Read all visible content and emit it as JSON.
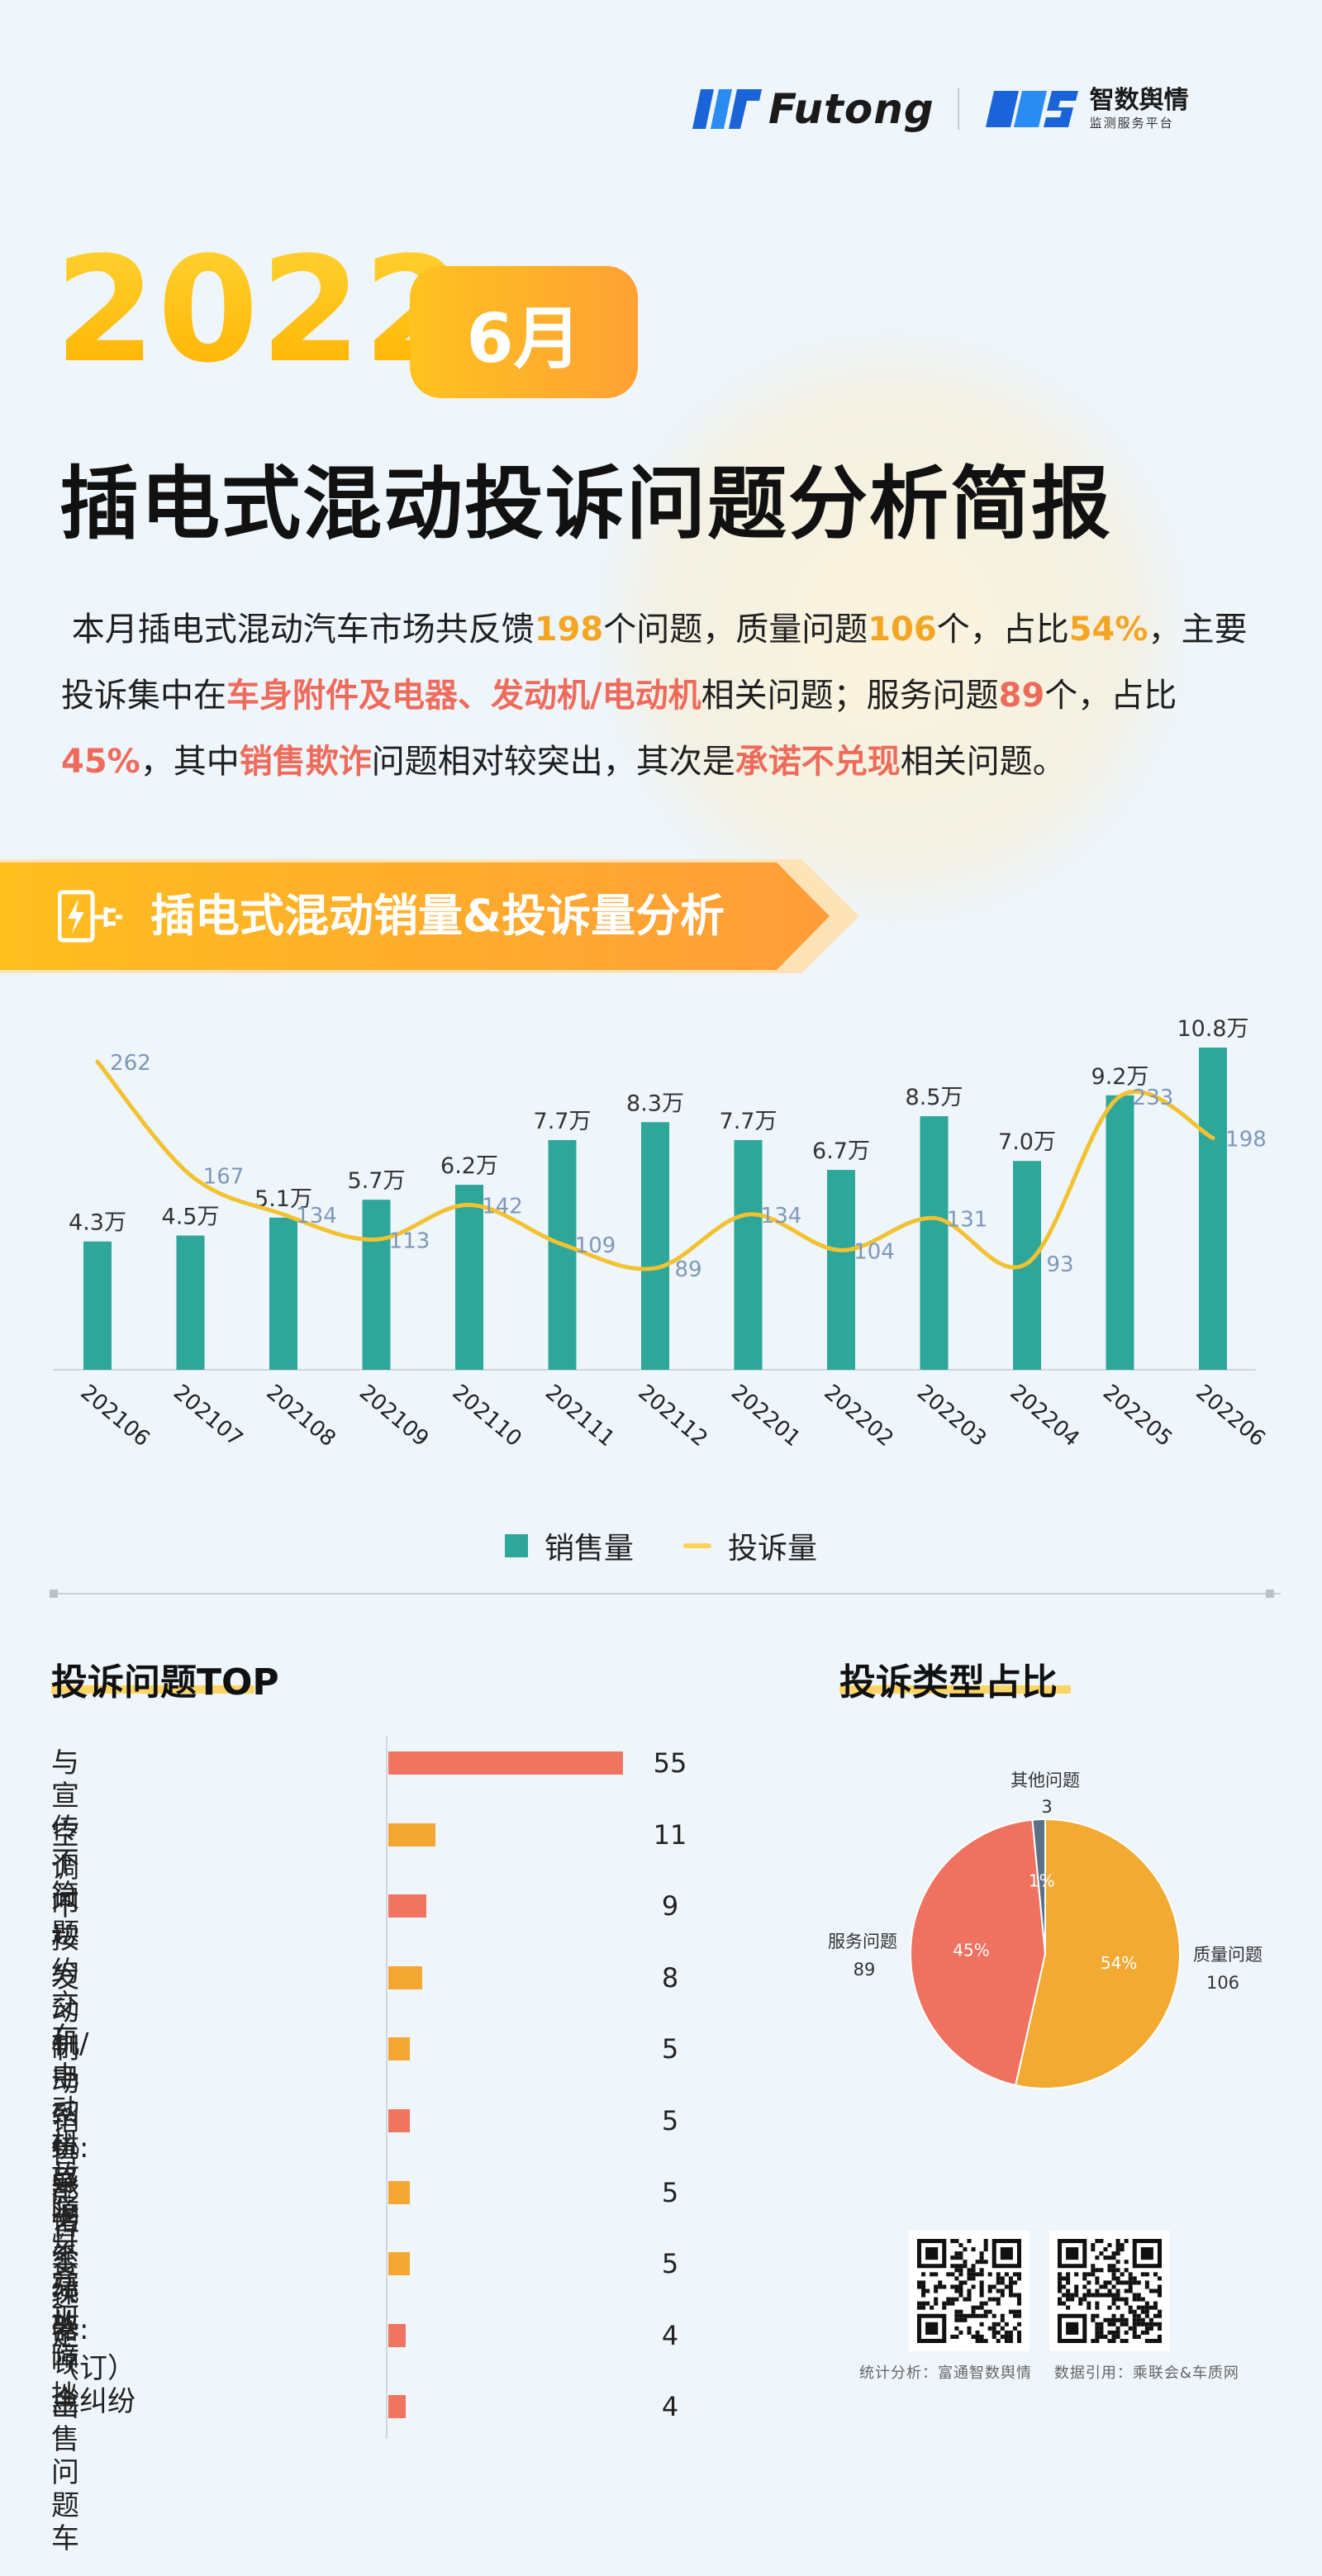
{
  "header": {
    "futong_brand": "Futong",
    "zhishu_name": "智数舆情",
    "zhishu_sub": "监测服务平台"
  },
  "hero": {
    "year": "2022",
    "month": "6月",
    "title": "插电式混动投诉问题分析简报"
  },
  "intro": {
    "p1": "本月插电式混动汽车市场共反馈",
    "total": "198",
    "p2": "个问题，质量问题",
    "quality": "106",
    "p3": "个，占比",
    "quality_pct": "54%",
    "p4": "，主要投诉集中在",
    "focus": "车身附件及电器、发动机/电动机",
    "p5": "相关问题；服务问题",
    "service": "89",
    "p6": "个，占比",
    "service_pct": "45%",
    "p7": "，其中",
    "sales_fraud": "销售欺诈",
    "p8": "问题相对较突出，其次是",
    "promise": "承诺不兑现",
    "p9": "相关问题。"
  },
  "section1": {
    "title": "插电式混动销量&投诉量分析"
  },
  "chart_data": [
    {
      "type": "bar+line",
      "categories": [
        "202106",
        "202107",
        "202108",
        "202109",
        "202110",
        "202111",
        "202112",
        "202201",
        "202202",
        "202203",
        "202204",
        "202205",
        "202206"
      ],
      "series": [
        {
          "name": "销售量",
          "kind": "bar",
          "color": "#2ea69a",
          "values": [
            4.3,
            4.5,
            5.1,
            5.7,
            6.2,
            7.7,
            8.3,
            7.7,
            6.7,
            8.5,
            7.0,
            9.2,
            10.8
          ],
          "labels": [
            "4.3万",
            "4.5万",
            "5.1万",
            "5.7万",
            "6.2万",
            "7.7万",
            "8.3万",
            "7.7万",
            "6.7万",
            "8.5万",
            "7.0万",
            "9.2万",
            "10.8万"
          ]
        },
        {
          "name": "投诉量",
          "kind": "line",
          "color": "#f2c230",
          "values": [
            262,
            167,
            134,
            113,
            142,
            109,
            89,
            134,
            104,
            131,
            93,
            233,
            198
          ]
        }
      ]
    },
    {
      "type": "bar",
      "title": "投诉问题TOP",
      "categories": [
        "与宣传不符",
        "空调问题",
        "不按约交车",
        "发动机/电动机故障灯亮",
        "制动系统:异响",
        "销售承诺不兑现",
        "影音系统故障",
        "变速器:顿挫",
        "定（订）金纠纷",
        "出售问题车"
      ],
      "values": [
        55,
        11,
        9,
        8,
        5,
        5,
        5,
        5,
        4,
        4
      ],
      "colors": [
        "#ef7560",
        "#f4a632",
        "#ef7560",
        "#f4a632",
        "#f4a632",
        "#ef7560",
        "#f4a632",
        "#f4a632",
        "#ef7560",
        "#ef7560"
      ]
    },
    {
      "type": "pie",
      "title": "投诉类型占比",
      "slices": [
        {
          "name": "质量问题",
          "value": 106,
          "pct": "54%",
          "color": "#f2aa33"
        },
        {
          "name": "服务问题",
          "value": 89,
          "pct": "45%",
          "color": "#ee725f"
        },
        {
          "name": "其他问题",
          "value": 3,
          "pct": "1%",
          "color": "#5b6f86"
        }
      ]
    }
  ],
  "footer": {
    "stat": "统计分析：富通智数舆情",
    "source": "数据引用：乘联会&车质网"
  }
}
